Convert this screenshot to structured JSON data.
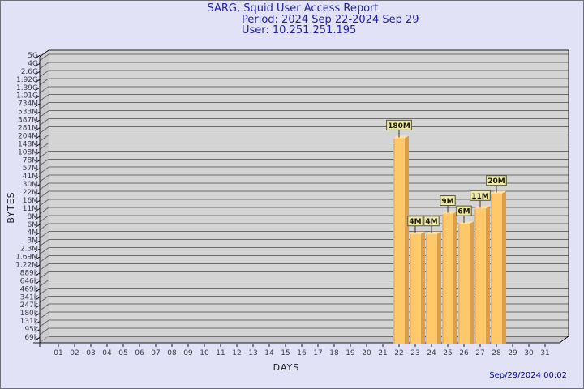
{
  "window": {
    "background_color": "#e2e2f6",
    "border_color": "#6e6e78"
  },
  "header": {
    "title": "SARG, Squid User Access Report",
    "period": "Period: 2024 Sep 22-2024 Sep 29",
    "user": "User: 10.251.251.195",
    "text_color": "#22229e"
  },
  "footer": {
    "timestamp": "Sep/29/2024 00:02",
    "text_color": "#0000b4"
  },
  "chart_data": {
    "type": "bar",
    "title": "SARG, Squid User Access Report",
    "xlabel": "DAYS",
    "ylabel": "BYTES",
    "y_scale": "log",
    "y_range_bytes": [
      69000,
      5000000000
    ],
    "grid": "horizontal",
    "legend": "none",
    "x_categories": [
      "01",
      "02",
      "03",
      "04",
      "05",
      "06",
      "07",
      "08",
      "09",
      "10",
      "11",
      "12",
      "13",
      "14",
      "15",
      "16",
      "17",
      "18",
      "19",
      "20",
      "21",
      "22",
      "23",
      "24",
      "25",
      "26",
      "27",
      "28",
      "29",
      "30",
      "31"
    ],
    "y_tick_labels_top_to_bottom": [
      "5G",
      "4G",
      "2.6G",
      "1.92G",
      "1.39G",
      "1.01G",
      "734M",
      "533M",
      "387M",
      "281M",
      "204M",
      "148M",
      "108M",
      "78M",
      "57M",
      "41M",
      "30M",
      "22M",
      "16M",
      "11M",
      "8M",
      "6M",
      "4M",
      "3M",
      "2.3M",
      "1.69M",
      "1.22M",
      "889k",
      "646k",
      "469k",
      "341k",
      "247k",
      "180k",
      "131k",
      "95k",
      "69k"
    ],
    "bars": [
      {
        "day": "22",
        "value_bytes": 180000000,
        "label": "180M"
      },
      {
        "day": "23",
        "value_bytes": 4000000,
        "label": "4M"
      },
      {
        "day": "24",
        "value_bytes": 4000000,
        "label": "4M"
      },
      {
        "day": "25",
        "value_bytes": 9000000,
        "label": "9M"
      },
      {
        "day": "26",
        "value_bytes": 6000000,
        "label": "6M"
      },
      {
        "day": "27",
        "value_bytes": 11000000,
        "label": "11M"
      },
      {
        "day": "28",
        "value_bytes": 20000000,
        "label": "20M"
      }
    ],
    "colors": {
      "bar_face": "#ffc96b",
      "bar_side": "#db9e4b",
      "bar_top": "#ffe0a0",
      "bar_edge_highlight": "#f2b457",
      "label_box_fill": "#eee9a7",
      "label_box_border": "#55553a",
      "label_text": "#1a1a00",
      "plot_back_wall": "#d4d4d4",
      "plot_side_wall": "#c6c6ca",
      "gridline": "#6a6a6a",
      "axis_line": "#1a1a1a",
      "tick_text": "#3a3a42"
    }
  }
}
